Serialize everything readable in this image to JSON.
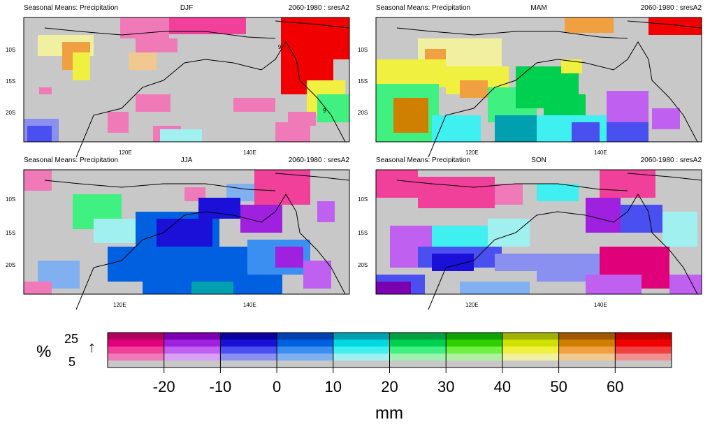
{
  "panels": [
    {
      "left_title": "Seasonal Means: Precipitation",
      "center_title": "DJF",
      "right_title": "2060-1980 : sresA2",
      "lat_labels": [
        "10S",
        "15S",
        "20S"
      ],
      "lon_labels": [
        "120E",
        "140E"
      ],
      "contour_labels": [
        "9",
        "9"
      ]
    },
    {
      "left_title": "Seasonal Means: Precipitation",
      "center_title": "MAM",
      "right_title": "2060-1980 : sresA2",
      "lat_labels": [
        "10S",
        "15S",
        "20S"
      ],
      "lon_labels": [
        "120E",
        "140E"
      ],
      "contour_labels": []
    },
    {
      "left_title": "Seasonal Means: Precipitation",
      "center_title": "JJA",
      "right_title": "2060-1980 : sresA2",
      "lat_labels": [
        "10S",
        "15S",
        "20S"
      ],
      "lon_labels": [
        "120E",
        "140E"
      ],
      "contour_labels": []
    },
    {
      "left_title": "Seasonal Means: Precipitation",
      "center_title": "SON",
      "right_title": "2060-1980 : sresA2",
      "lat_labels": [
        "10S",
        "15S",
        "20S"
      ],
      "lon_labels": [
        "120E",
        "140E"
      ],
      "contour_labels": []
    }
  ],
  "colorbar": {
    "percent_symbol": "%",
    "percent_top": "25",
    "percent_bottom": "5",
    "arrow": "↑",
    "unit": "mm",
    "tick_labels": [
      "-20",
      "-10",
      "0",
      "10",
      "20",
      "30",
      "40",
      "50",
      "60"
    ],
    "hues": [
      [
        "#b0005f",
        "#e0007a",
        "#f0409a",
        "#f07ab8"
      ],
      [
        "#7a00b0",
        "#a020e0",
        "#c060f0",
        "#d8a0f0"
      ],
      [
        "#0a00a0",
        "#1a10d8",
        "#4a50f0",
        "#8a90f0"
      ],
      [
        "#0040b0",
        "#0060e0",
        "#3a8ff0",
        "#80b0f0"
      ],
      [
        "#00a0b0",
        "#00d8e0",
        "#40f0f0",
        "#a0f0f0"
      ],
      [
        "#00a040",
        "#00d050",
        "#40f080",
        "#a0f0b0"
      ],
      [
        "#10a000",
        "#30d000",
        "#70f040",
        "#b0f0a0"
      ],
      [
        "#a0b000",
        "#d0e000",
        "#f0f040",
        "#f0f0a0"
      ],
      [
        "#a05800",
        "#d08000",
        "#f0a040",
        "#f0c890"
      ],
      [
        "#c00000",
        "#f00000",
        "#f04040",
        "#f09090"
      ]
    ],
    "no_signal": "#c8c8c8"
  }
}
